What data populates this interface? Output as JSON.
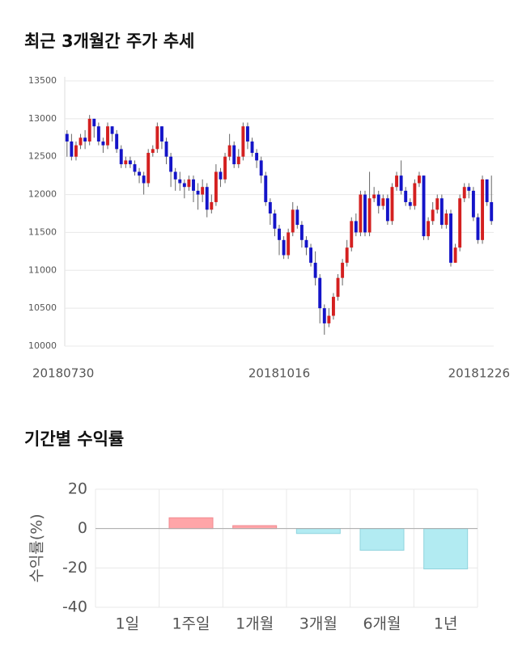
{
  "chart_data": [
    {
      "type": "candlestick",
      "title": "최근 3개월간 주가 추세",
      "categories": [
        "20180730",
        null,
        null,
        null,
        null,
        null,
        null,
        null,
        null,
        null,
        null,
        null,
        null,
        null,
        null,
        null,
        null,
        null,
        null,
        null,
        null,
        null,
        null,
        null,
        null,
        null,
        null,
        null,
        null,
        null,
        null,
        null,
        null,
        null,
        null,
        null,
        null,
        null,
        null,
        null,
        null,
        null,
        null,
        null,
        null,
        null,
        null,
        "20181016",
        null,
        null,
        null,
        null,
        null,
        null,
        null,
        null,
        null,
        null,
        null,
        null,
        null,
        null,
        null,
        null,
        null,
        null,
        null,
        null,
        null,
        null,
        null,
        null,
        null,
        null,
        null,
        null,
        null,
        null,
        null,
        null,
        null,
        null,
        null,
        null,
        null,
        null,
        null,
        null,
        null,
        null,
        null,
        null,
        null,
        null,
        "20181226"
      ],
      "ohlc": [
        [
          12800,
          12850,
          12500,
          12700
        ],
        [
          12700,
          12800,
          12450,
          12500
        ],
        [
          12500,
          12700,
          12450,
          12650
        ],
        [
          12650,
          12800,
          12600,
          12750
        ],
        [
          12750,
          12850,
          12600,
          12700
        ],
        [
          12700,
          13050,
          12650,
          13000
        ],
        [
          13000,
          13000,
          12750,
          12900
        ],
        [
          12900,
          12950,
          12650,
          12700
        ],
        [
          12700,
          12750,
          12550,
          12650
        ],
        [
          12650,
          12950,
          12600,
          12900
        ],
        [
          12900,
          12900,
          12700,
          12800
        ],
        [
          12800,
          12850,
          12550,
          12600
        ],
        [
          12600,
          12650,
          12350,
          12400
        ],
        [
          12400,
          12500,
          12350,
          12450
        ],
        [
          12450,
          12500,
          12350,
          12400
        ],
        [
          12400,
          12450,
          12250,
          12300
        ],
        [
          12300,
          12350,
          12150,
          12250
        ],
        [
          12250,
          12300,
          12000,
          12150
        ],
        [
          12150,
          12600,
          12100,
          12550
        ],
        [
          12550,
          12650,
          12500,
          12600
        ],
        [
          12600,
          12950,
          12550,
          12900
        ],
        [
          12900,
          12900,
          12600,
          12700
        ],
        [
          12700,
          12750,
          12400,
          12500
        ],
        [
          12500,
          12550,
          12100,
          12300
        ],
        [
          12300,
          12350,
          12050,
          12200
        ],
        [
          12200,
          12300,
          12050,
          12150
        ],
        [
          12150,
          12200,
          11950,
          12100
        ],
        [
          12100,
          12250,
          12050,
          12200
        ],
        [
          12200,
          12250,
          11900,
          12050
        ],
        [
          12050,
          12150,
          11800,
          12000
        ],
        [
          12000,
          12200,
          11900,
          12100
        ],
        [
          12100,
          12150,
          11700,
          11800
        ],
        [
          11800,
          12000,
          11750,
          11900
        ],
        [
          11900,
          12400,
          11850,
          12300
        ],
        [
          12300,
          12350,
          12100,
          12200
        ],
        [
          12200,
          12550,
          12150,
          12500
        ],
        [
          12500,
          12800,
          12450,
          12650
        ],
        [
          12650,
          12700,
          12350,
          12400
        ],
        [
          12400,
          12600,
          12350,
          12500
        ],
        [
          12500,
          12950,
          12450,
          12900
        ],
        [
          12900,
          12950,
          12600,
          12700
        ],
        [
          12700,
          12750,
          12500,
          12550
        ],
        [
          12550,
          12600,
          12350,
          12450
        ],
        [
          12450,
          12500,
          12150,
          12250
        ],
        [
          12250,
          12300,
          11850,
          11900
        ],
        [
          11900,
          11950,
          11600,
          11750
        ],
        [
          11750,
          11800,
          11450,
          11550
        ],
        [
          11550,
          11600,
          11200,
          11400
        ],
        [
          11400,
          11450,
          11150,
          11200
        ],
        [
          11200,
          11550,
          11150,
          11500
        ],
        [
          11500,
          11900,
          11450,
          11800
        ],
        [
          11800,
          11850,
          11550,
          11600
        ],
        [
          11600,
          11650,
          11300,
          11400
        ],
        [
          11400,
          11450,
          11200,
          11300
        ],
        [
          11300,
          11350,
          11050,
          11100
        ],
        [
          11100,
          11250,
          10800,
          10900
        ],
        [
          10900,
          10950,
          10300,
          10500
        ],
        [
          10500,
          10550,
          10150,
          10300
        ],
        [
          10300,
          10500,
          10250,
          10400
        ],
        [
          10400,
          10700,
          10350,
          10650
        ],
        [
          10650,
          10950,
          10600,
          10900
        ],
        [
          10900,
          11150,
          10800,
          11100
        ],
        [
          11100,
          11400,
          11050,
          11300
        ],
        [
          11300,
          11700,
          11250,
          11650
        ],
        [
          11650,
          11750,
          11450,
          11500
        ],
        [
          11500,
          12050,
          11450,
          12000
        ],
        [
          12000,
          12050,
          11450,
          11500
        ],
        [
          11500,
          12300,
          11450,
          11950
        ],
        [
          11950,
          12100,
          11900,
          12000
        ],
        [
          12000,
          12050,
          11750,
          11850
        ],
        [
          11850,
          12000,
          11800,
          11950
        ],
        [
          11950,
          12000,
          11600,
          11650
        ],
        [
          11650,
          12150,
          11600,
          12100
        ],
        [
          12100,
          12300,
          12050,
          12250
        ],
        [
          12250,
          12450,
          12000,
          12050
        ],
        [
          12050,
          12100,
          11850,
          11900
        ],
        [
          11900,
          11950,
          11800,
          11850
        ],
        [
          11850,
          12200,
          11800,
          12150
        ],
        [
          12150,
          12300,
          12100,
          12250
        ],
        [
          12250,
          12250,
          11400,
          11450
        ],
        [
          11450,
          11700,
          11400,
          11650
        ],
        [
          11650,
          11900,
          11600,
          11800
        ],
        [
          11800,
          12000,
          11750,
          11950
        ],
        [
          11950,
          12000,
          11550,
          11600
        ],
        [
          11600,
          11800,
          11550,
          11750
        ],
        [
          11750,
          11800,
          11050,
          11100
        ],
        [
          11100,
          11350,
          11100,
          11300
        ],
        [
          11300,
          12000,
          11250,
          11950
        ],
        [
          11950,
          12150,
          11900,
          12100
        ],
        [
          12100,
          12150,
          11950,
          12050
        ],
        [
          12050,
          12100,
          11650,
          11700
        ],
        [
          11700,
          11750,
          11350,
          11400
        ],
        [
          11400,
          12250,
          11350,
          12200
        ],
        [
          12200,
          12200,
          11850,
          11900
        ],
        [
          11900,
          12250,
          11600,
          11650
        ]
      ],
      "up_color": "#d42020",
      "down_color": "#1414c8",
      "ylim": [
        10000,
        13500
      ],
      "yticks": [
        10000,
        10500,
        11000,
        11500,
        12000,
        12500,
        13000,
        13500
      ],
      "grid": true
    },
    {
      "type": "bar",
      "title": "기간별 수익률",
      "ylabel": "수익률(%)",
      "categories": [
        "1일",
        "1주일",
        "1개월",
        "3개월",
        "6개월",
        "1년"
      ],
      "values": [
        0,
        5.5,
        1.5,
        -2.5,
        -11,
        -20.5
      ],
      "positive_color": "#ffa5a8",
      "negative_color": "#b2ebf2",
      "ylim": [
        -40,
        20
      ],
      "yticks": [
        -40,
        -20,
        0,
        20
      ],
      "grid": true
    }
  ]
}
